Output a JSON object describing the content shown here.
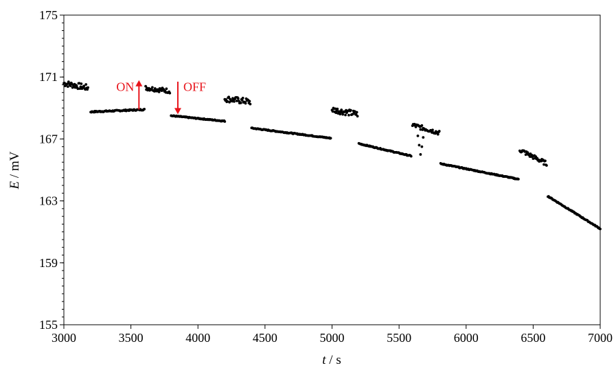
{
  "chart_data": {
    "type": "scatter",
    "xlabel": {
      "var": "t",
      "unit": " / s"
    },
    "ylabel": {
      "var": "E",
      "unit": " / mV"
    },
    "xlim": [
      3000,
      7000
    ],
    "ylim": [
      155,
      175
    ],
    "xticks": [
      3000,
      3500,
      4000,
      4500,
      5000,
      5500,
      6000,
      6500,
      7000
    ],
    "yticks": [
      155,
      159,
      163,
      167,
      171,
      175
    ],
    "y_minor_step": 0.5,
    "grid": false,
    "legend": "none",
    "marker_color": "#000000",
    "segments": [
      {
        "state": "ON",
        "x0": 3000,
        "x1": 3180,
        "y0": 170.6,
        "y1": 170.3,
        "noise": 0.2
      },
      {
        "state": "OFF",
        "x0": 3200,
        "x1": 3600,
        "y0": 168.75,
        "y1": 168.9,
        "noise": 0.04
      },
      {
        "state": "ON",
        "x0": 3610,
        "x1": 3790,
        "y0": 170.3,
        "y1": 170.1,
        "noise": 0.15
      },
      {
        "state": "OFF",
        "x0": 3800,
        "x1": 4200,
        "y0": 168.5,
        "y1": 168.15,
        "noise": 0.03
      },
      {
        "state": "ON",
        "x0": 4200,
        "x1": 4390,
        "y0": 169.6,
        "y1": 169.4,
        "noise": 0.2
      },
      {
        "state": "OFF",
        "x0": 4400,
        "x1": 4990,
        "y0": 167.7,
        "y1": 167.05,
        "noise": 0.03
      },
      {
        "state": "ON",
        "x0": 5000,
        "x1": 5190,
        "y0": 168.9,
        "y1": 168.6,
        "noise": 0.2
      },
      {
        "state": "OFF",
        "x0": 5200,
        "x1": 5590,
        "y0": 166.7,
        "y1": 165.9,
        "noise": 0.03
      },
      {
        "state": "ON",
        "x0": 5600,
        "x1": 5800,
        "y0": 167.9,
        "y1": 167.4,
        "noise": 0.15
      },
      {
        "state": "OFF",
        "x0": 5810,
        "x1": 6390,
        "y0": 165.4,
        "y1": 164.4,
        "noise": 0.03
      },
      {
        "state": "ON",
        "x0": 6400,
        "x1": 6600,
        "y0": 166.3,
        "y1": 165.4,
        "noise": 0.15
      },
      {
        "state": "OFF",
        "x0": 6610,
        "x1": 7000,
        "y0": 163.3,
        "y1": 161.2,
        "noise": 0.03
      }
    ],
    "dip": {
      "x": [
        5640,
        5650,
        5660,
        5670,
        5680
      ],
      "y": [
        167.2,
        166.6,
        166.0,
        166.5,
        167.1
      ]
    },
    "annotations": [
      {
        "text": "ON",
        "color": "#e8141b",
        "arrow": "up",
        "x": 3560,
        "y_from": 168.9,
        "y_to": 170.8
      },
      {
        "text": "OFF",
        "color": "#e8141b",
        "arrow": "down",
        "x": 3850,
        "y_from": 170.7,
        "y_to": 168.6
      }
    ]
  }
}
